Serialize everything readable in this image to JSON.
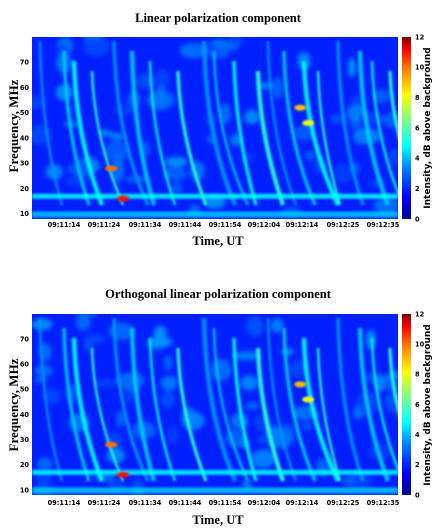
{
  "colorbar": {
    "label": "Intensity, dB above background",
    "ticks": [
      "0",
      "2",
      "4",
      "6",
      "8",
      "10",
      "12"
    ],
    "range": [
      0,
      12
    ],
    "colors": [
      "#00008f",
      "#0000ff",
      "#0080ff",
      "#00ffff",
      "#80ff80",
      "#ffff00",
      "#ff8000",
      "#ff0000",
      "#800000"
    ]
  },
  "chart_data": [
    {
      "type": "heatmap",
      "title": "Linear polarization component",
      "xlabel": "Time, UT",
      "ylabel": "Frequency, MHz",
      "xticks": [
        "09:11:14",
        "09:11:24",
        "09:11:34",
        "09:11:44",
        "09:11:54",
        "09:12:04",
        "09:12:14",
        "09:12:25",
        "09:12:35"
      ],
      "yticks": [
        "10",
        "20",
        "30",
        "40",
        "50",
        "60",
        "70"
      ],
      "ylim": [
        8,
        80
      ],
      "colorbar_label": "Intensity, dB above background",
      "colorbar_range": [
        0,
        12
      ],
      "features": [
        {
          "kind": "bright-band",
          "x": "09:11:14-09:12:40",
          "y_mhz": [
            16,
            18
          ],
          "intensity_db": 9
        },
        {
          "kind": "hot-spot",
          "x": "09:11:26",
          "y_mhz": 28,
          "intensity_db": 10
        },
        {
          "kind": "hot-spot",
          "x": "09:11:29",
          "y_mhz": 16,
          "intensity_db": 11
        },
        {
          "kind": "hot-spot",
          "x": "09:12:14",
          "y_mhz": 52,
          "intensity_db": 9
        },
        {
          "kind": "hot-spot",
          "x": "09:12:16",
          "y_mhz": 46,
          "intensity_db": 8
        }
      ]
    },
    {
      "type": "heatmap",
      "title": "Orthogonal linear polarization component",
      "xlabel": "Time, UT",
      "ylabel": "Frequency, MHz",
      "xticks": [
        "09:11:14",
        "09:11:24",
        "09:11:34",
        "09:11:44",
        "09:11:54",
        "09:12:04",
        "09:12:14",
        "09:12:25",
        "09:12:35"
      ],
      "yticks": [
        "10",
        "20",
        "30",
        "40",
        "50",
        "60",
        "70"
      ],
      "ylim": [
        8,
        80
      ],
      "colorbar_label": "Intensity, dB above background",
      "colorbar_range": [
        0,
        12
      ],
      "features": [
        {
          "kind": "bright-band",
          "x": "09:11:14-09:12:40",
          "y_mhz": [
            16,
            18
          ],
          "intensity_db": 9
        },
        {
          "kind": "hot-spot",
          "x": "09:11:26",
          "y_mhz": 28,
          "intensity_db": 10
        },
        {
          "kind": "hot-spot",
          "x": "09:11:29",
          "y_mhz": 16,
          "intensity_db": 11
        },
        {
          "kind": "hot-spot",
          "x": "09:12:14",
          "y_mhz": 52,
          "intensity_db": 9
        },
        {
          "kind": "hot-spot",
          "x": "09:12:16",
          "y_mhz": 46,
          "intensity_db": 8
        }
      ]
    }
  ]
}
